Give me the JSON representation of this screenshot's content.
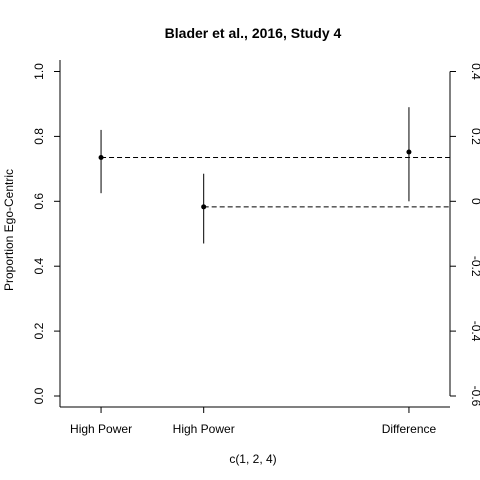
{
  "chart_data": {
    "type": "scatter",
    "title": "Blader et al., 2016, Study 4",
    "xlabel": "c(1, 2, 4)",
    "ylabel": "Proportion Ego-Centric",
    "categories": [
      "High Power",
      "High Power",
      "Difference"
    ],
    "x": [
      1,
      2,
      4
    ],
    "ylim": [
      0,
      1
    ],
    "xlim": [
      0.6,
      4.4
    ],
    "yticks": [
      "0.0",
      "0.2",
      "0.4",
      "0.6",
      "0.8",
      "1.0"
    ],
    "right_axis": {
      "ylim": [
        -0.6,
        0.4
      ],
      "ticks": [
        "-0.6",
        "-0.4",
        "-0.2",
        "0",
        "0.2",
        "0.4"
      ]
    },
    "points": [
      {
        "x": 1,
        "axis": "left",
        "estimate": 0.735,
        "ci_low": 0.625,
        "ci_high": 0.82
      },
      {
        "x": 2,
        "axis": "left",
        "estimate": 0.583,
        "ci_low": 0.47,
        "ci_high": 0.685
      },
      {
        "x": 4,
        "axis": "right",
        "estimate": 0.152,
        "ci_low": 0.0,
        "ci_high": 0.29
      }
    ],
    "reference_lines": [
      {
        "style": "dashed",
        "y_left": 0.735,
        "from_x": 1,
        "to_x": 4.4
      },
      {
        "style": "dashed",
        "y_left": 0.583,
        "from_x": 2,
        "to_x": 4.4
      }
    ],
    "grid": false,
    "legend": "none"
  }
}
